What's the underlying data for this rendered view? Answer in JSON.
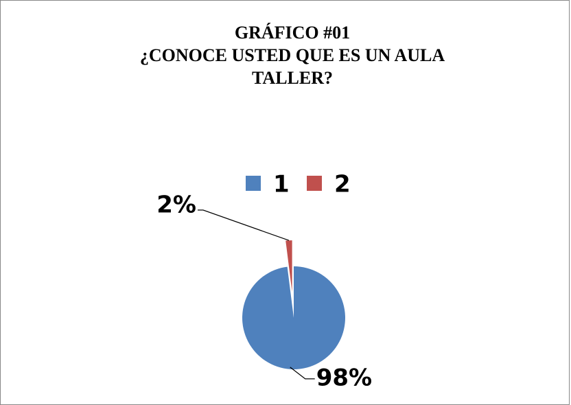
{
  "chart_data": {
    "type": "pie",
    "title": "GRÁFICO #01",
    "subtitle": "¿CONOCE USTED QUE ES UN AULA TALLER?",
    "categories": [
      "1",
      "2"
    ],
    "values": [
      98,
      2
    ],
    "value_labels": [
      "98%",
      "2%"
    ],
    "colors": [
      "#4f81bd",
      "#c0504d"
    ],
    "legend": "top"
  }
}
